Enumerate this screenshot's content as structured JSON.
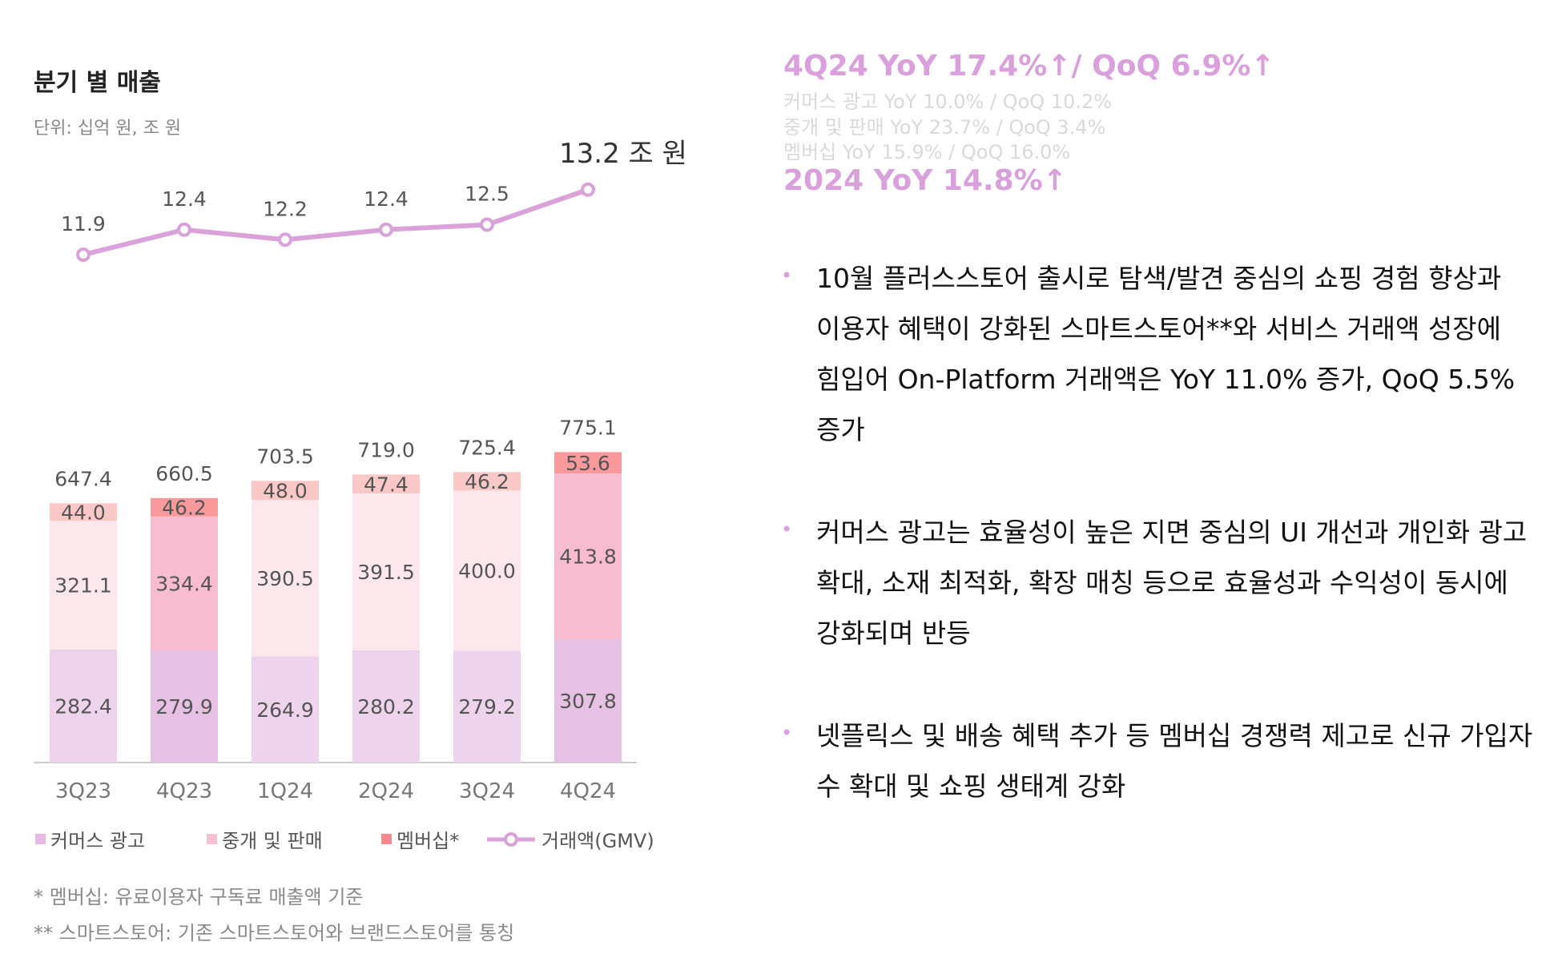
{
  "chart_data": {
    "type": "bar",
    "title": "분기 별 매출",
    "unit_label": "단위: 십억 원, 조 원",
    "categories": [
      "3Q23",
      "4Q23",
      "1Q24",
      "2Q24",
      "3Q24",
      "4Q24"
    ],
    "series": [
      {
        "name": "커머스 광고",
        "values": [
          282.4,
          279.9,
          264.9,
          280.2,
          279.2,
          307.8
        ],
        "value_labels": [
          "282.4",
          "279.9",
          "264.9",
          "280.2",
          "279.2",
          "307.8"
        ]
      },
      {
        "name": "중개 및 판매",
        "values": [
          321.1,
          334.4,
          390.5,
          391.5,
          400.0,
          413.8
        ],
        "value_labels": [
          "321.1",
          "334.4",
          "390.5",
          "391.5",
          "400.0",
          "413.8"
        ]
      },
      {
        "name": "멤버십*",
        "values": [
          44.0,
          46.2,
          48.0,
          47.4,
          46.2,
          53.6
        ],
        "value_labels": [
          "44.0",
          "46.2",
          "48.0",
          "47.4",
          "46.2",
          "53.6"
        ]
      }
    ],
    "totals": [
      647.4,
      660.5,
      703.5,
      719.0,
      725.4,
      775.1
    ],
    "total_labels": [
      "647.4",
      "660.5",
      "703.5",
      "719.0",
      "725.4",
      "775.1"
    ],
    "line_series": {
      "name": "거래액(GMV)",
      "values": [
        11.9,
        12.4,
        12.2,
        12.4,
        12.5,
        13.2
      ],
      "value_labels": [
        "11.9",
        "12.4",
        "12.2",
        "12.4",
        "12.5",
        "13.2 조 원"
      ]
    },
    "legend": [
      "커머스 광고",
      "중개 및 판매",
      "멤버십*",
      "거래액(GMV)"
    ],
    "colors": {
      "commerce_ad": "#edd3eb",
      "commerce_ad_alt": "#e6c1e3",
      "brokerage": "#fce7ec",
      "brokerage_alt": "#f7bcd0",
      "membership": "#fbc8c8",
      "membership_alt": "#f89a9c",
      "gmv_line": "#d9a3d9",
      "axis": "#cccccc",
      "label": "#555555",
      "legend_commerce": "#e9b9e6",
      "legend_brokerage": "#f6c1d3",
      "legend_membership": "#f4888c"
    },
    "ylim": [
      0,
      1000
    ]
  },
  "footnotes": [
    "* 멤버십: 유료이용자 구독료 매출액 기준",
    "** 스마트스토어: 기존 스마트스토어와 브랜드스토어를 통칭"
  ],
  "kpi": {
    "q_summary": "4Q24 YoY 17.4%↑/ QoQ 6.9%↑",
    "lines": [
      "커머스 광고 YoY 10.0% / QoQ 10.2%",
      "중개 및 판매 YoY 23.7% / QoQ 3.4%",
      "멤버십 YoY 15.9% / QoQ 16.0%"
    ],
    "year_summary": "2024 YoY 14.8%↑"
  },
  "bullets": [
    [
      "10월 플러스스토어 출시로 탐색/발견 중심의 쇼핑 경험 향상과",
      "이용자 혜택이 강화된 스마트스토어**와 서비스 거래액 성장에",
      "힘입어 On-Platform 거래액은 YoY 11.0% 증가, QoQ 5.5%",
      "증가"
    ],
    [
      "커머스 광고는 효율성이 높은 지면 중심의 UI 개선과 개인화 광고",
      "확대, 소재 최적화, 확장 매칭 등으로 효율성과 수익성이 동시에",
      "강화되며 반등"
    ],
    [
      "넷플릭스 및 배송 혜택 추가 등 멤버십 경쟁력 제고로 신규 가입자",
      "수 확대 및 쇼핑 생태계 강화"
    ]
  ],
  "bullet_marker": "•"
}
